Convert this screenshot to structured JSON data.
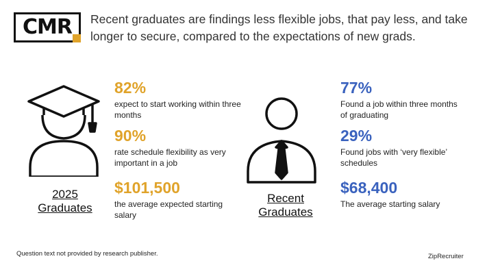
{
  "logo": {
    "text": "CMR"
  },
  "headline": "Recent graduates are findings less flexible jobs, that pay less, and take longer to secure, compared to the expectations of new grads.",
  "left_group": {
    "caption_line1": "2025",
    "caption_line2": "Graduates",
    "stats": [
      {
        "value": "82%",
        "description": "expect to start working within three months"
      },
      {
        "value": "90%",
        "description": "rate schedule flexibility as very important in a job"
      },
      {
        "value": "$101,500",
        "description": "the average expected starting salary"
      }
    ]
  },
  "right_group": {
    "caption_line1": "Recent",
    "caption_line2": "Graduates",
    "stats": [
      {
        "value": "77%",
        "description": "Found a job within three months of graduating"
      },
      {
        "value": "29%",
        "description": "Found jobs with ‘very flexible’ schedules"
      },
      {
        "value": "$68,400",
        "description": "The average starting salary"
      }
    ]
  },
  "footnote": "Question text not provided by research publisher.",
  "source": "ZipRecruiter",
  "colors": {
    "gold": "#e0a32a",
    "blue": "#3a62be",
    "text": "#333333"
  },
  "icons": [
    "graduate-icon",
    "businessman-icon"
  ]
}
